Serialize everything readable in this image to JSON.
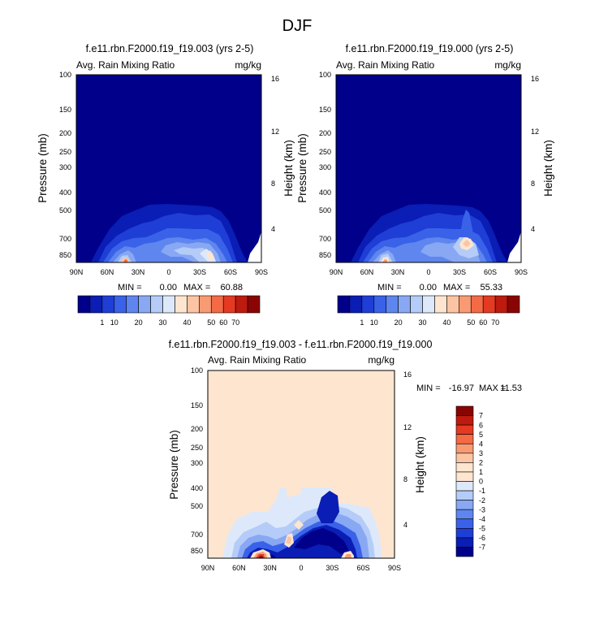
{
  "figure_title": "DJF",
  "chart_data": [
    {
      "type": "heatmap",
      "title": "f.e11.rbn.F2000.f19_f19.003 (yrs 2-5)",
      "left_label": "Avg. Rain Mixing Ratio",
      "right_label": "mg/kg",
      "ylabel": "Pressure (mb)",
      "y2label": "Height (km)",
      "xticks": [
        "90N",
        "60N",
        "30N",
        "0",
        "30S",
        "60S",
        "90S"
      ],
      "yticks": [
        "100",
        "150",
        "200",
        "250",
        "300",
        "400",
        "500",
        "700",
        "850"
      ],
      "y2ticks": [
        "16",
        "12",
        "8",
        "4"
      ],
      "stats": {
        "min_label": "MIN =",
        "min": "0.00",
        "max_label": "MAX =",
        "max": "60.88"
      },
      "colorbar": {
        "labels": [
          "1",
          "10",
          "20",
          "30",
          "40",
          "50",
          "60",
          "70"
        ],
        "colors": [
          "#00008a",
          "#0a1db4",
          "#1e3ed6",
          "#3a62e8",
          "#5f86ef",
          "#88a8f3",
          "#b4ccf7",
          "#dde9fb",
          "#fde5d0",
          "#fbc4a3",
          "#f89a72",
          "#f46a45",
          "#e43a22",
          "#be1a0e",
          "#8a0404"
        ]
      }
    },
    {
      "type": "heatmap",
      "title": "f.e11.rbn.F2000.f19_f19.000 (yrs 2-5)",
      "left_label": "Avg. Rain Mixing Ratio",
      "right_label": "mg/kg",
      "ylabel": "Pressure (mb)",
      "y2label": "Height (km)",
      "xticks": [
        "90N",
        "60N",
        "30N",
        "0",
        "30S",
        "60S",
        "90S"
      ],
      "yticks": [
        "100",
        "150",
        "200",
        "250",
        "300",
        "400",
        "500",
        "700",
        "850"
      ],
      "y2ticks": [
        "16",
        "12",
        "8",
        "4"
      ],
      "stats": {
        "min_label": "MIN =",
        "min": "0.00",
        "max_label": "MAX =",
        "max": "55.33"
      },
      "colorbar": {
        "labels": [
          "1",
          "10",
          "20",
          "30",
          "40",
          "50",
          "60",
          "70"
        ],
        "colors": [
          "#00008a",
          "#0a1db4",
          "#1e3ed6",
          "#3a62e8",
          "#5f86ef",
          "#88a8f3",
          "#b4ccf7",
          "#dde9fb",
          "#fde5d0",
          "#fbc4a3",
          "#f89a72",
          "#f46a45",
          "#e43a22",
          "#be1a0e",
          "#8a0404"
        ]
      }
    },
    {
      "type": "heatmap",
      "title": "f.e11.rbn.F2000.f19_f19.003 - f.e11.rbn.F2000.f19_f19.000",
      "left_label": "Avg. Rain Mixing Ratio",
      "right_label": "mg/kg",
      "ylabel": "Pressure (mb)",
      "y2label": "Height (km)",
      "xticks": [
        "90N",
        "60N",
        "30N",
        "0",
        "30S",
        "60S",
        "90S"
      ],
      "yticks": [
        "100",
        "150",
        "200",
        "250",
        "300",
        "400",
        "500",
        "700",
        "850"
      ],
      "y2ticks": [
        "16",
        "12",
        "8",
        "4"
      ],
      "stats": {
        "min_label": "MIN =",
        "min": "-16.97",
        "max_label": "MAX =",
        "max": "11.53"
      },
      "colorbar": {
        "labels": [
          "7",
          "6",
          "5",
          "4",
          "3",
          "2",
          "1",
          "0",
          "-1",
          "-2",
          "-3",
          "-4",
          "-5",
          "-6",
          "-7"
        ],
        "colors": [
          "#8a0404",
          "#be1a0e",
          "#e43a22",
          "#f46a45",
          "#f89a72",
          "#fbc4a3",
          "#fde5d0",
          "#fde5d0",
          "#dde9fb",
          "#b4ccf7",
          "#88a8f3",
          "#5f86ef",
          "#3a62e8",
          "#1e3ed6",
          "#0a1db4",
          "#00008a"
        ]
      }
    }
  ]
}
